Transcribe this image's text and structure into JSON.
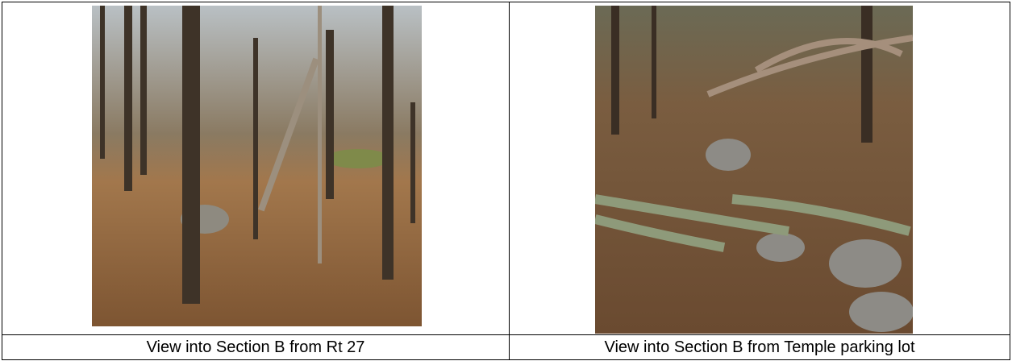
{
  "table": {
    "captions": [
      "View into Section B from Rt 27",
      "View into Section B from Temple parking lot"
    ]
  }
}
